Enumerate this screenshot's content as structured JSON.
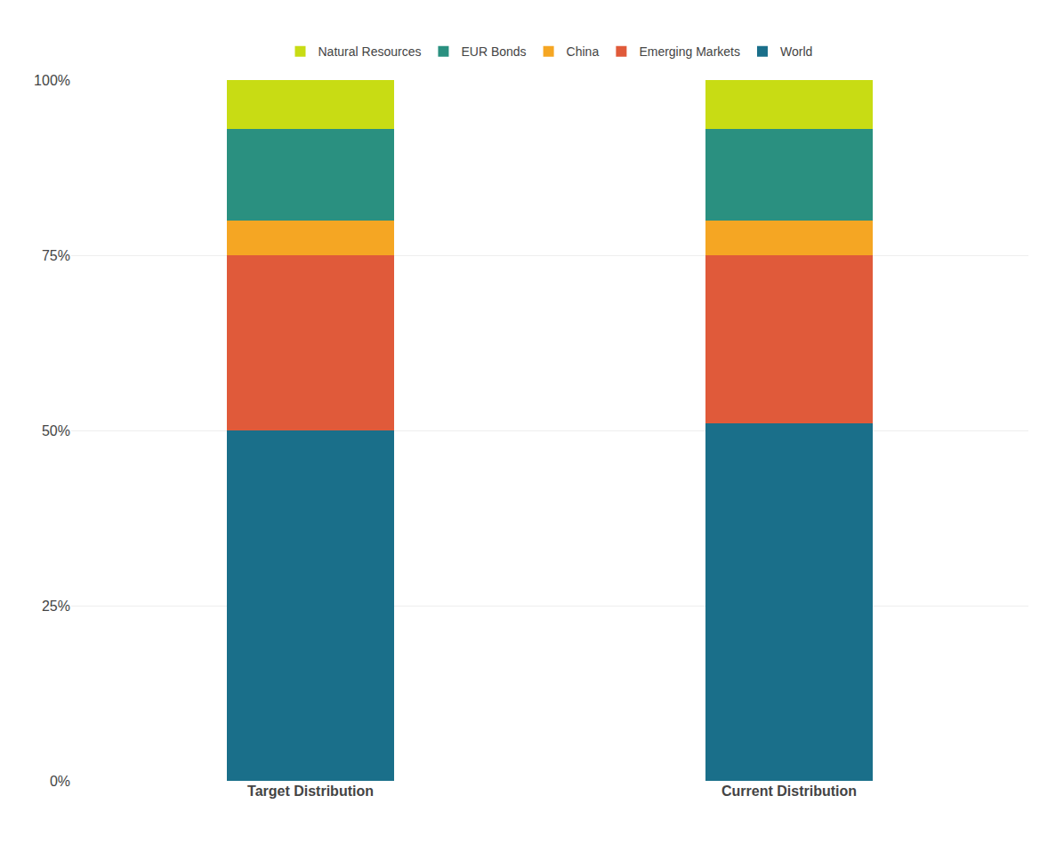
{
  "chart_data": {
    "type": "bar",
    "stacked": true,
    "categories": [
      "Target Distribution",
      "Current Distribution"
    ],
    "series": [
      {
        "name": "World",
        "color": "#1a6f8a",
        "values": [
          0.5,
          0.51
        ]
      },
      {
        "name": "Emerging Markets",
        "color": "#e05a3a",
        "values": [
          0.25,
          0.24
        ]
      },
      {
        "name": "China",
        "color": "#f5a623",
        "values": [
          0.05,
          0.05
        ]
      },
      {
        "name": "EUR Bonds",
        "color": "#2a9080",
        "values": [
          0.13,
          0.13
        ]
      },
      {
        "name": "Natural Resources",
        "color": "#c8dc14",
        "values": [
          0.07,
          0.07
        ]
      }
    ],
    "ylim": [
      0,
      1.0
    ],
    "yticks": [
      {
        "value": 0.0,
        "label": "0%"
      },
      {
        "value": 0.25,
        "label": "25%"
      },
      {
        "value": 0.5,
        "label": "50%"
      },
      {
        "value": 0.75,
        "label": "75%"
      },
      {
        "value": 1.0,
        "label": "100%"
      }
    ],
    "grid": true,
    "legend": "top"
  }
}
